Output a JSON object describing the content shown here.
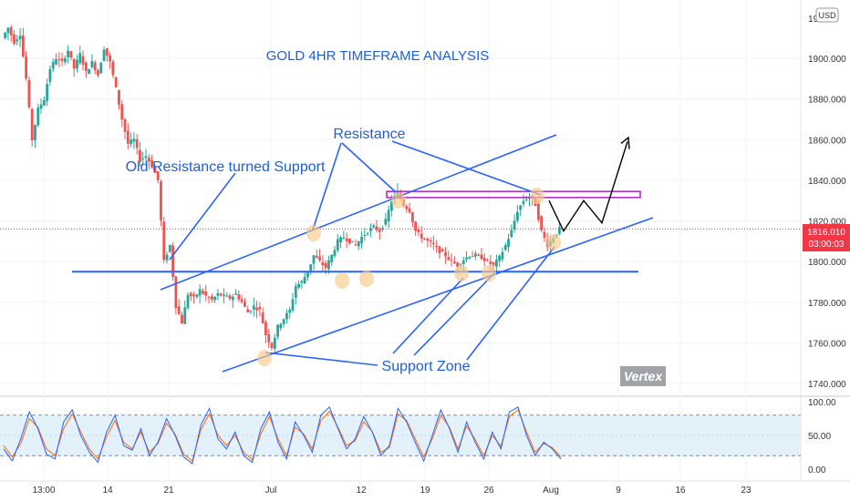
{
  "chart_data": {
    "type": "candlestick",
    "title": "GOLD 4HR TIMEFRAME ANALYSIS",
    "currency": "USD",
    "price_axis": {
      "ylim": [
        1735,
        1925
      ],
      "ticks": [
        1740,
        1760,
        1780,
        1800,
        1820,
        1840,
        1860,
        1880,
        1900
      ],
      "tick_labels": [
        "1740.000",
        "1760.000",
        "1780.000",
        "1800.000",
        "1820.000",
        "1840.000",
        "1860.000",
        "1880.000",
        "1900.000"
      ],
      "top_partial_label": "19"
    },
    "time_axis": {
      "labels": [
        "13:00",
        "14",
        "21",
        "Jul",
        "12",
        "19",
        "26",
        "Aug",
        "9",
        "16",
        "23"
      ]
    },
    "last_price": {
      "value": 1816.01,
      "label": "1816.010",
      "countdown": "03:00:03"
    },
    "price_path": [
      1910,
      1915,
      1908,
      1912,
      1890,
      1860,
      1875,
      1880,
      1895,
      1900,
      1898,
      1904,
      1895,
      1902,
      1893,
      1898,
      1892,
      1905,
      1898,
      1885,
      1870,
      1858,
      1860,
      1850,
      1852,
      1847,
      1840,
      1800,
      1808,
      1778,
      1770,
      1784,
      1782,
      1786,
      1783,
      1781,
      1784,
      1783,
      1782,
      1784,
      1780,
      1775,
      1778,
      1776,
      1764,
      1758,
      1768,
      1772,
      1776,
      1788,
      1790,
      1795,
      1803,
      1800,
      1797,
      1803,
      1810,
      1812,
      1810,
      1808,
      1812,
      1815,
      1817,
      1815,
      1820,
      1830,
      1834,
      1828,
      1825,
      1815,
      1812,
      1810,
      1808,
      1805,
      1803,
      1800,
      1798,
      1801,
      1803,
      1803,
      1802,
      1800,
      1798,
      1802,
      1808,
      1815,
      1825,
      1830,
      1832,
      1828,
      1815,
      1808,
      1812,
      1816
    ],
    "projection": [
      [
        1817,
        1829
      ],
      [
        1810,
        1822
      ],
      [
        1825,
        1822
      ],
      [
        1815,
        1862
      ]
    ],
    "horizontal_lines": [
      {
        "name": "support-line",
        "price": 1795
      },
      {
        "name": "resistance-band",
        "price": 1833
      }
    ],
    "annotations": {
      "resistance": "Resistance",
      "old_resistance": "Old Resistance turned Support",
      "support_zone": "Support Zone",
      "watermark": "Vertex"
    },
    "stoch_rsi": {
      "ylim": [
        0,
        100
      ],
      "upper_band": 80,
      "lower_band": 20,
      "tick_labels": [
        "100.00",
        "50.00",
        "0.00"
      ],
      "k": [
        30,
        12,
        45,
        85,
        60,
        22,
        15,
        70,
        88,
        50,
        25,
        10,
        55,
        80,
        35,
        28,
        60,
        20,
        40,
        75,
        50,
        18,
        8,
        65,
        90,
        45,
        30,
        55,
        20,
        10,
        60,
        85,
        40,
        15,
        70,
        50,
        25,
        80,
        92,
        60,
        30,
        45,
        78,
        55,
        20,
        35,
        90,
        70,
        40,
        12,
        50,
        88,
        60,
        25,
        70,
        40,
        15,
        55,
        30,
        85,
        92,
        50,
        20,
        40,
        30,
        15
      ],
      "d": [
        35,
        18,
        38,
        75,
        62,
        30,
        20,
        60,
        82,
        55,
        30,
        15,
        48,
        72,
        40,
        30,
        55,
        25,
        38,
        68,
        52,
        22,
        12,
        58,
        82,
        50,
        35,
        50,
        25,
        14,
        52,
        78,
        45,
        20,
        62,
        52,
        30,
        72,
        86,
        62,
        35,
        42,
        70,
        56,
        25,
        32,
        82,
        72,
        45,
        18,
        45,
        80,
        62,
        30,
        64,
        44,
        20,
        50,
        34,
        78,
        88,
        55,
        25,
        38,
        32,
        18
      ]
    }
  }
}
